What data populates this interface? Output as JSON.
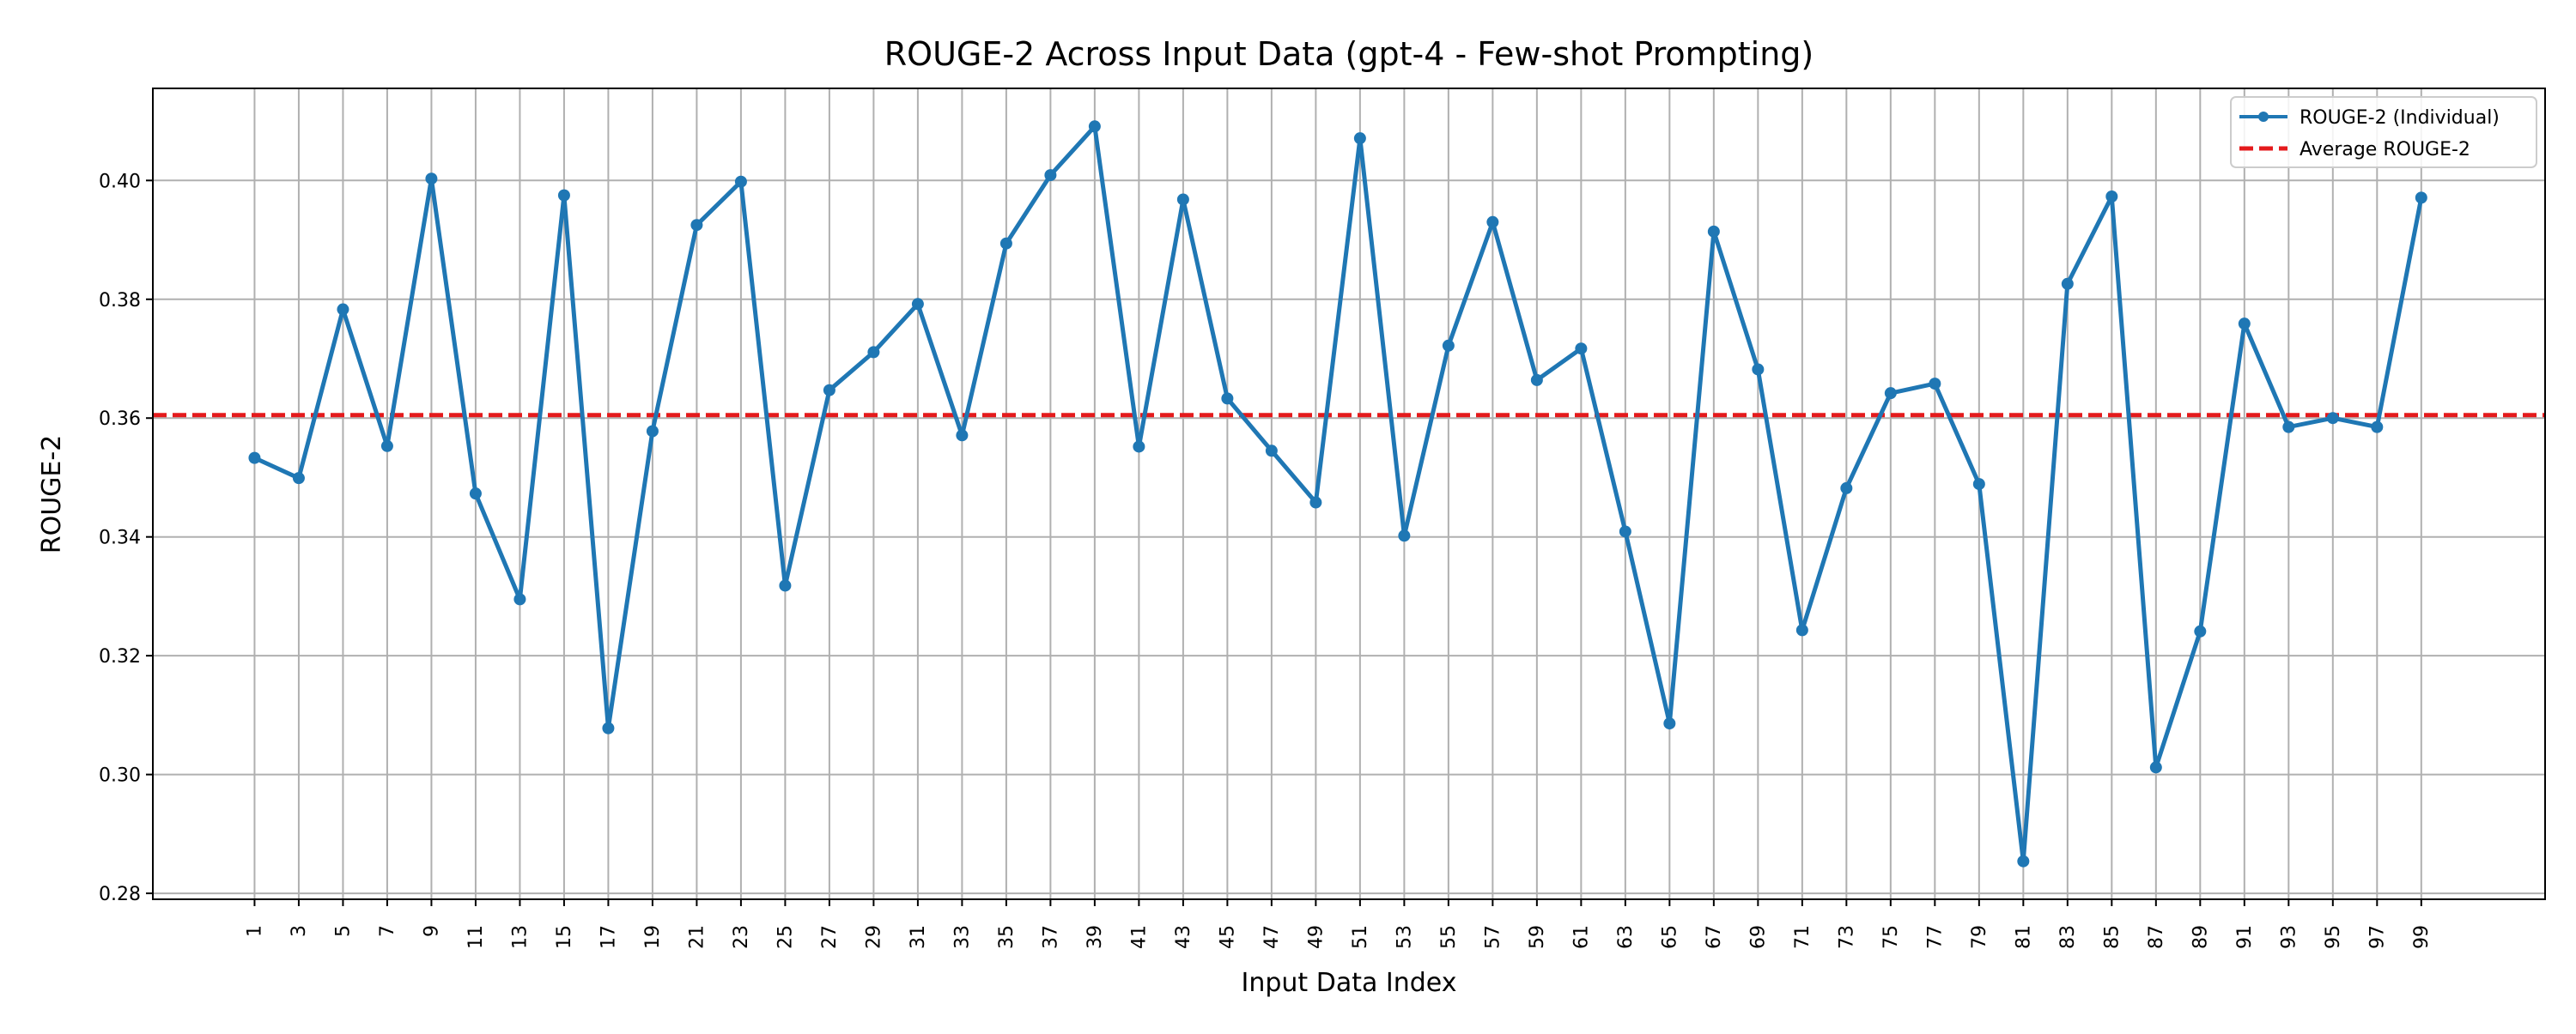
{
  "chart_data": {
    "type": "line",
    "title": "ROUGE-2 Across Input Data (gpt-4 - Few-shot Prompting)",
    "xlabel": "Input Data Index",
    "ylabel": "ROUGE-2",
    "x": [
      1,
      3,
      5,
      7,
      9,
      11,
      13,
      15,
      17,
      19,
      21,
      23,
      25,
      27,
      29,
      31,
      33,
      35,
      37,
      39,
      41,
      43,
      45,
      47,
      49,
      51,
      53,
      55,
      57,
      59,
      61,
      63,
      65,
      67,
      69,
      71,
      73,
      75,
      77,
      79,
      81,
      83,
      85,
      87,
      89,
      91,
      93,
      95,
      97,
      99
    ],
    "x_ticks": [
      "1",
      "3",
      "5",
      "7",
      "9",
      "11",
      "13",
      "15",
      "17",
      "19",
      "21",
      "23",
      "25",
      "27",
      "29",
      "31",
      "33",
      "35",
      "37",
      "39",
      "41",
      "43",
      "45",
      "47",
      "49",
      "51",
      "53",
      "55",
      "57",
      "59",
      "61",
      "63",
      "65",
      "67",
      "69",
      "71",
      "73",
      "75",
      "77",
      "79",
      "81",
      "83",
      "85",
      "87",
      "89",
      "91",
      "93",
      "95",
      "97",
      "99"
    ],
    "xlim": [
      -3.6,
      104.6
    ],
    "ylim": [
      0.279,
      0.4155
    ],
    "y_ticks": [
      "0.28",
      "0.30",
      "0.32",
      "0.34",
      "0.36",
      "0.38",
      "0.40"
    ],
    "grid": true,
    "legend_position": "top-right",
    "series": [
      {
        "name": "ROUGE-2 (Individual)",
        "color": "#1f77b4",
        "style": "solid-with-markers",
        "values": [
          0.3533,
          0.3499,
          0.3783,
          0.3553,
          0.4003,
          0.3473,
          0.3295,
          0.3975,
          0.3078,
          0.3578,
          0.3925,
          0.3998,
          0.3318,
          0.3647,
          0.3711,
          0.3792,
          0.3571,
          0.3894,
          0.4009,
          0.4091,
          0.3552,
          0.3968,
          0.3633,
          0.3545,
          0.3458,
          0.4071,
          0.3402,
          0.3722,
          0.393,
          0.3664,
          0.3717,
          0.3409,
          0.3086,
          0.3914,
          0.3682,
          0.3243,
          0.3482,
          0.3642,
          0.3658,
          0.3489,
          0.2854,
          0.3826,
          0.3973,
          0.3012,
          0.3241,
          0.3759,
          0.3585,
          0.36,
          0.3585,
          0.3971
        ]
      },
      {
        "name": "Average ROUGE-2",
        "color": "#e41a1c",
        "style": "dashed",
        "value": 0.3605
      }
    ]
  }
}
